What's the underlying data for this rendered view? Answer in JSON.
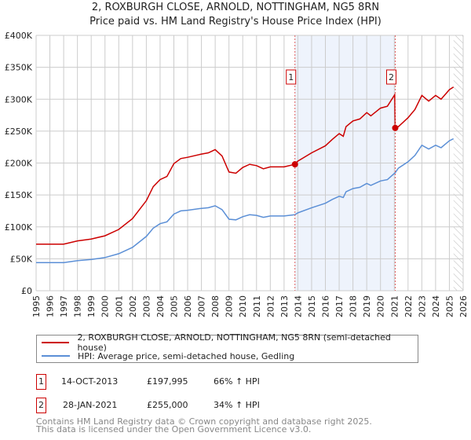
{
  "title_line1": "2, ROXBURGH CLOSE, ARNOLD, NOTTINGHAM, NG5 8RN",
  "title_line2": "Price paid vs. HM Land Registry's House Price Index (HPI)",
  "chart_data": {
    "type": "line",
    "title": "2, ROXBURGH CLOSE, ARNOLD, NOTTINGHAM, NG5 8RN — Price paid vs. HM Land Registry's House Price Index (HPI)",
    "xlim": [
      1995,
      2026
    ],
    "ylim": [
      0,
      400000
    ],
    "y_ticks": [
      {
        "v": 0,
        "label": "£0"
      },
      {
        "v": 50000,
        "label": "£50K"
      },
      {
        "v": 100000,
        "label": "£100K"
      },
      {
        "v": 150000,
        "label": "£150K"
      },
      {
        "v": 200000,
        "label": "£200K"
      },
      {
        "v": 250000,
        "label": "£250K"
      },
      {
        "v": 300000,
        "label": "£300K"
      },
      {
        "v": 350000,
        "label": "£350K"
      },
      {
        "v": 400000,
        "label": "£400K"
      }
    ],
    "x_ticks": [
      "1995",
      "1996",
      "1997",
      "1998",
      "1999",
      "2000",
      "2001",
      "2002",
      "2003",
      "2004",
      "2005",
      "2006",
      "2007",
      "2008",
      "2009",
      "2010",
      "2011",
      "2012",
      "2013",
      "2014",
      "2015",
      "2016",
      "2017",
      "2018",
      "2019",
      "2020",
      "2021",
      "2022",
      "2023",
      "2024",
      "2025",
      "2026"
    ],
    "grid": true,
    "shaded_range": [
      2013.79,
      2021.07
    ],
    "future_hatch_from": 2025.3,
    "series": [
      {
        "name": "2, ROXBURGH CLOSE, ARNOLD, NOTTINGHAM, NG5 8RN (semi-detached house)",
        "color": "#cc0000",
        "x": [
          1995,
          1996,
          1997,
          1998,
          1999,
          2000,
          2001,
          2002,
          2003,
          2003.5,
          2004,
          2004.5,
          2005,
          2005.5,
          2006,
          2007,
          2007.5,
          2008,
          2008.5,
          2009,
          2009.5,
          2010,
          2010.5,
          2011,
          2011.5,
          2012,
          2013,
          2013.79,
          2014,
          2015,
          2016,
          2016.5,
          2017,
          2017.3,
          2017.5,
          2018,
          2018.5,
          2019,
          2019.3,
          2020,
          2020.5,
          2021.03,
          2021.07,
          2021.3,
          2022,
          2022.5,
          2023,
          2023.5,
          2024,
          2024.4,
          2025,
          2025.3
        ],
        "y": [
          73000,
          73000,
          73000,
          78000,
          81000,
          86000,
          96000,
          113000,
          141000,
          163000,
          174000,
          179000,
          199000,
          207000,
          209000,
          214000,
          216000,
          221000,
          211000,
          186000,
          184000,
          193000,
          198000,
          196000,
          191000,
          194000,
          194000,
          197995,
          203000,
          216000,
          227000,
          237000,
          246000,
          242000,
          257000,
          266000,
          269000,
          279000,
          274000,
          286000,
          289000,
          307000,
          255000,
          257000,
          271000,
          284000,
          306000,
          297000,
          306000,
          300000,
          315000,
          319000
        ]
      },
      {
        "name": "HPI: Average price, semi-detached house, Gedling",
        "color": "#5b8fd6",
        "x": [
          1995,
          1996,
          1997,
          1998,
          1999,
          2000,
          2001,
          2002,
          2003,
          2003.5,
          2004,
          2004.5,
          2005,
          2005.5,
          2006,
          2007,
          2007.5,
          2008,
          2008.5,
          2009,
          2009.5,
          2010,
          2010.5,
          2011,
          2011.5,
          2012,
          2013,
          2013.79,
          2014,
          2015,
          2016,
          2016.5,
          2017,
          2017.3,
          2017.5,
          2018,
          2018.5,
          2019,
          2019.3,
          2020,
          2020.5,
          2021.07,
          2021.3,
          2022,
          2022.5,
          2023,
          2023.5,
          2024,
          2024.4,
          2025,
          2025.3
        ],
        "y": [
          44000,
          44000,
          44000,
          47000,
          49000,
          52000,
          58000,
          68000,
          85000,
          98000,
          105000,
          108000,
          120000,
          125000,
          126000,
          129000,
          130000,
          133000,
          127000,
          112000,
          111000,
          116000,
          119000,
          118000,
          115000,
          117000,
          117000,
          119000,
          122000,
          130000,
          137000,
          143000,
          148000,
          146000,
          155000,
          160000,
          162000,
          168000,
          165000,
          172000,
          174000,
          185000,
          192000,
          202000,
          212000,
          228000,
          222000,
          228000,
          224000,
          235000,
          238000
        ]
      }
    ],
    "sales": [
      {
        "label": "1",
        "x": 2013.79,
        "y": 197995,
        "date": "14-OCT-2013",
        "price": "£197,995",
        "hpi": "66% ↑ HPI"
      },
      {
        "label": "2",
        "x": 2021.07,
        "y": 255000,
        "date": "28-JAN-2021",
        "price": "£255,000",
        "hpi": "34% ↑ HPI"
      }
    ]
  },
  "footer_line1": "Contains HM Land Registry data © Crown copyright and database right 2025.",
  "footer_line2": "This data is licensed under the Open Government Licence v3.0."
}
